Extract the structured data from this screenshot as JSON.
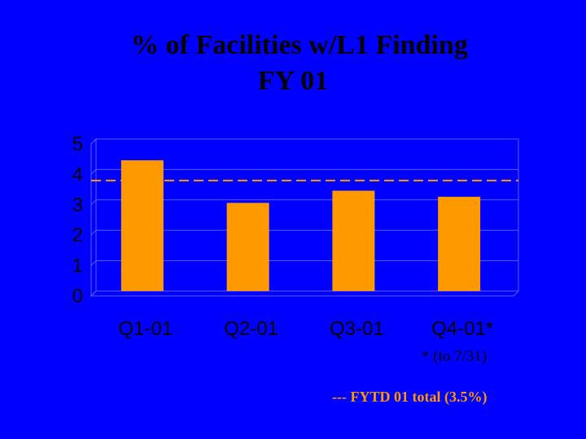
{
  "title_line1": "% of Facilities w/L1 Finding",
  "title_line2": "FY 01",
  "footnote": "* (to 7/31)",
  "reference_note": "--- FYTD 01 total (3.5%)",
  "colors": {
    "background": "#0000ff",
    "bar": "#ff9900",
    "grid": "#5c5cff",
    "axis_text": "#000000",
    "reference_line": "#ff9900"
  },
  "chart_data": {
    "type": "bar",
    "categories": [
      "Q1-01",
      "Q2-01",
      "Q3-01",
      "Q4-01*"
    ],
    "values": [
      4.3,
      2.9,
      3.3,
      3.1
    ],
    "ylim": [
      0,
      5
    ],
    "yticks": [
      0,
      1,
      2,
      3,
      4,
      5
    ],
    "grid": true,
    "reference_line": {
      "value": 3.5,
      "style": "dashed"
    },
    "title": "% of Facilities w/L1 Finding FY 01",
    "xlabel": "",
    "ylabel": ""
  }
}
